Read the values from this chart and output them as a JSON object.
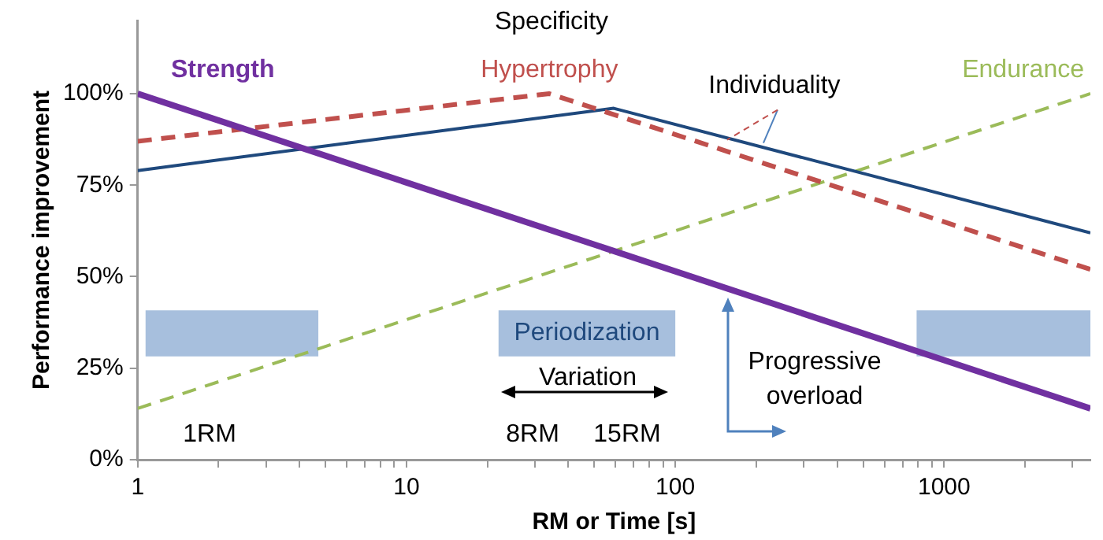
{
  "chart_data": {
    "type": "line",
    "xlabel": "RM or Time [s]",
    "ylabel": "Performance improvement",
    "log": "x",
    "xlim": [
      1,
      3500
    ],
    "ylim": [
      0,
      120
    ],
    "xticks": [
      1,
      {
        "value": 2,
        "label": null
      },
      {
        "value": 3,
        "label": null
      },
      {
        "value": 4,
        "label": null
      },
      {
        "value": 5,
        "label": null
      },
      {
        "value": 6,
        "label": null
      },
      {
        "value": 7,
        "label": null
      },
      {
        "value": 8,
        "label": null
      },
      {
        "value": 9,
        "label": null
      },
      10,
      {
        "value": 20,
        "label": null
      },
      {
        "value": 30,
        "label": null
      },
      {
        "value": 40,
        "label": null
      },
      {
        "value": 50,
        "label": null
      },
      {
        "value": 60,
        "label": null
      },
      {
        "value": 70,
        "label": null
      },
      {
        "value": 80,
        "label": null
      },
      {
        "value": 90,
        "label": null
      },
      100,
      {
        "value": 200,
        "label": null
      },
      {
        "value": 300,
        "label": null
      },
      {
        "value": 400,
        "label": null
      },
      {
        "value": 500,
        "label": null
      },
      {
        "value": 600,
        "label": null
      },
      {
        "value": 700,
        "label": null
      },
      {
        "value": 800,
        "label": null
      },
      {
        "value": 900,
        "label": null
      },
      1000,
      {
        "value": 2000,
        "label": null
      },
      {
        "value": 3000,
        "label": null
      }
    ],
    "yticks": [
      {
        "value": 0,
        "label": "0%"
      },
      {
        "value": 25,
        "label": "25%"
      },
      {
        "value": 50,
        "label": "50%"
      },
      {
        "value": 75,
        "label": "75%"
      },
      {
        "value": 100,
        "label": "100%"
      }
    ],
    "grid": false,
    "legend": false,
    "marker": "none",
    "series": [
      {
        "name": "Strength",
        "color": "#7030a0",
        "line_style": "solid",
        "x": [
          1,
          3500
        ],
        "values": [
          100,
          14
        ]
      },
      {
        "name": "Hypertrophy",
        "color": "#c0504d",
        "line_style": "dashed",
        "x": [
          1,
          34,
          3500
        ],
        "values": [
          87,
          100,
          52
        ]
      },
      {
        "name": "Individuality",
        "color": "#1f497d",
        "line_style": "solid",
        "x": [
          1,
          59,
          3500
        ],
        "values": [
          79,
          96,
          62
        ]
      },
      {
        "name": "Endurance",
        "color": "#9bbb59",
        "line_style": "dashed",
        "x": [
          1,
          3500
        ],
        "values": [
          14,
          100
        ]
      }
    ],
    "bands": [
      {
        "axis": "x",
        "from": 1.07,
        "to": 4.7,
        "label": null,
        "color": "#a7bfdd"
      },
      {
        "axis": "x",
        "from": 22,
        "to": 100,
        "label": "Periodization",
        "color": "#a7bfdd"
      },
      {
        "axis": "x",
        "from": 790,
        "to": 3500,
        "label": null,
        "color": "#a7bfdd"
      }
    ],
    "annotations": [
      "Specificity",
      "1RM",
      "8RM",
      "15RM",
      "Variation",
      "Progressive overload"
    ]
  }
}
